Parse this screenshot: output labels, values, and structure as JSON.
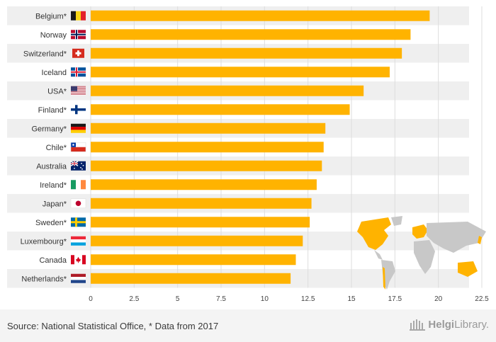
{
  "chart_data": {
    "type": "bar",
    "orientation": "horizontal",
    "categories": [
      "Belgium*",
      "Norway",
      "Switzerland*",
      "Iceland",
      "USA*",
      "Finland*",
      "Germany*",
      "Chile*",
      "Australia",
      "Ireland*",
      "Japan*",
      "Sweden*",
      "Luxembourg*",
      "Canada",
      "Netherlands*"
    ],
    "values": [
      19.5,
      18.4,
      17.9,
      17.2,
      15.7,
      14.9,
      13.5,
      13.4,
      13.3,
      13.0,
      12.7,
      12.6,
      12.2,
      11.8,
      11.5
    ],
    "xlim": [
      0,
      22.5
    ],
    "xticks": [
      "0",
      "2.5",
      "5",
      "7.5",
      "10",
      "12.5",
      "15",
      "17.5",
      "20",
      "22.5"
    ],
    "bar_color": "#ffb300",
    "row_band_color": "#efefef",
    "grid": true
  },
  "flags": [
    "belgium-flag-icon",
    "norway-flag-icon",
    "switzerland-flag-icon",
    "iceland-flag-icon",
    "usa-flag-icon",
    "finland-flag-icon",
    "germany-flag-icon",
    "chile-flag-icon",
    "australia-flag-icon",
    "ireland-flag-icon",
    "japan-flag-icon",
    "sweden-flag-icon",
    "luxembourg-flag-icon",
    "canada-flag-icon",
    "netherlands-flag-icon"
  ],
  "footer": {
    "source": "Source: National Statistical Office, * Data from 2017",
    "logo_bold": "Helgi",
    "logo_light": "Library."
  },
  "map": {
    "icon": "world-map-icon",
    "highlight_color": "#ffb300",
    "base_color": "#c8c8c8"
  }
}
